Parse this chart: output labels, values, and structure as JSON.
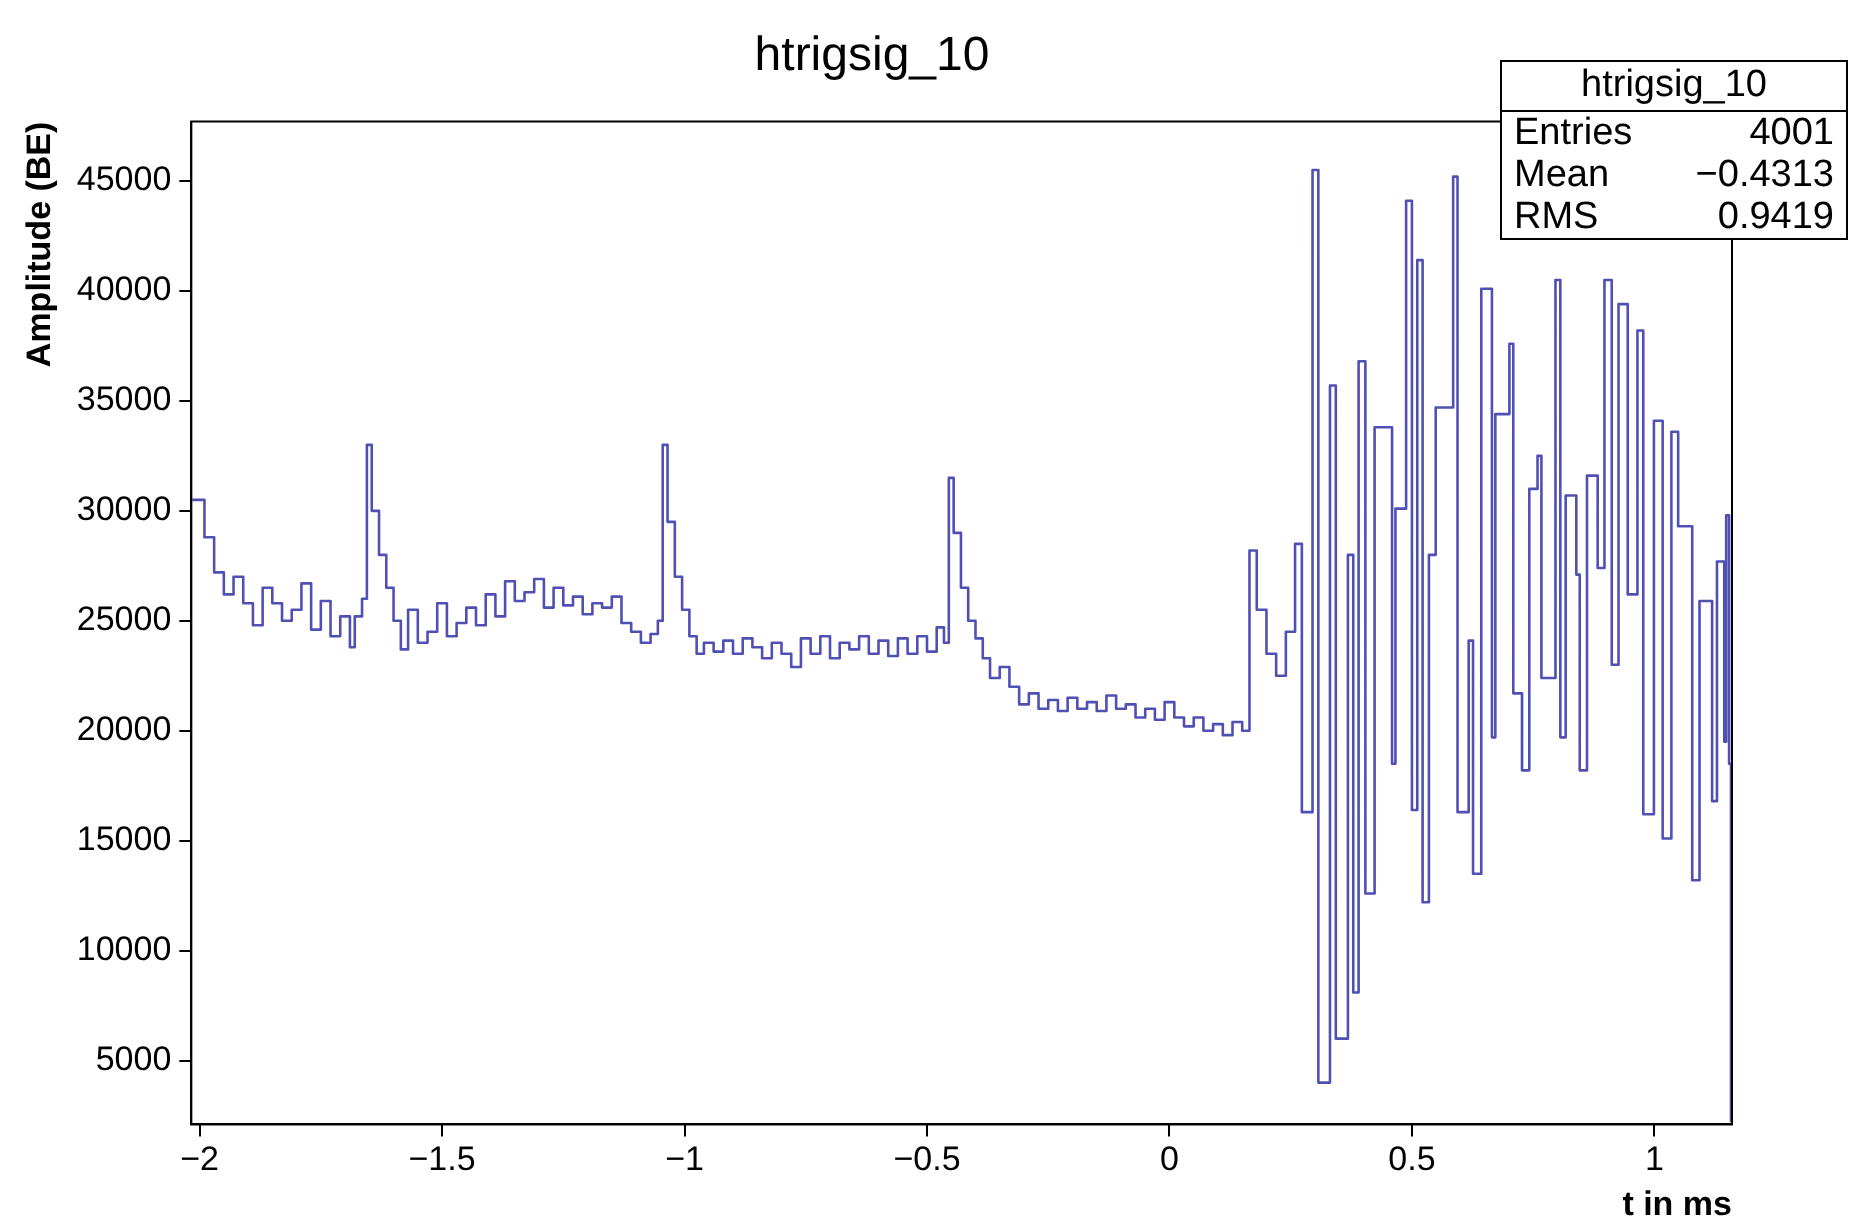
{
  "chart_data": {
    "type": "step",
    "title": "htrigsig_10",
    "xlabel": "t in ms",
    "ylabel": "Amplitude (BE)",
    "xlim": [
      -2.017,
      1.16
    ],
    "xticks": [
      {
        "value": -2,
        "label": "−2"
      },
      {
        "value": -1.5,
        "label": "−1.5"
      },
      {
        "value": -1,
        "label": "−1"
      },
      {
        "value": -0.5,
        "label": "−0.5"
      },
      0,
      0.5,
      1
    ],
    "ylim": [
      2100,
      47700
    ],
    "yticks": [
      5000,
      10000,
      15000,
      20000,
      25000,
      30000,
      35000,
      40000,
      45000
    ],
    "grid": false,
    "legend": false,
    "marker": "none",
    "line_style": "solid",
    "annotations": [
      "htrigsig_10",
      "Entries 4001",
      "Mean −0.4313",
      "RMS 0.9419"
    ],
    "series": [
      {
        "color": "#5050b4",
        "x": [
          -2.015,
          -1.99,
          -1.97,
          -1.95,
          -1.93,
          -1.91,
          -1.89,
          -1.87,
          -1.85,
          -1.83,
          -1.81,
          -1.79,
          -1.77,
          -1.75,
          -1.73,
          -1.71,
          -1.69,
          -1.68,
          -1.665,
          -1.655,
          -1.645,
          -1.63,
          -1.615,
          -1.6,
          -1.585,
          -1.57,
          -1.55,
          -1.53,
          -1.51,
          -1.49,
          -1.47,
          -1.45,
          -1.43,
          -1.41,
          -1.39,
          -1.37,
          -1.35,
          -1.33,
          -1.31,
          -1.29,
          -1.27,
          -1.25,
          -1.23,
          -1.21,
          -1.19,
          -1.17,
          -1.15,
          -1.13,
          -1.11,
          -1.09,
          -1.07,
          -1.055,
          -1.045,
          -1.035,
          -1.02,
          -1.005,
          -0.99,
          -0.975,
          -0.96,
          -0.94,
          -0.92,
          -0.9,
          -0.88,
          -0.86,
          -0.84,
          -0.82,
          -0.8,
          -0.78,
          -0.76,
          -0.74,
          -0.72,
          -0.7,
          -0.68,
          -0.66,
          -0.64,
          -0.62,
          -0.6,
          -0.58,
          -0.56,
          -0.54,
          -0.52,
          -0.5,
          -0.48,
          -0.465,
          -0.455,
          -0.445,
          -0.43,
          -0.415,
          -0.4,
          -0.385,
          -0.37,
          -0.35,
          -0.33,
          -0.31,
          -0.29,
          -0.27,
          -0.25,
          -0.23,
          -0.21,
          -0.19,
          -0.17,
          -0.15,
          -0.13,
          -0.11,
          -0.09,
          -0.07,
          -0.05,
          -0.03,
          -0.01,
          0.01,
          0.03,
          0.05,
          0.07,
          0.09,
          0.11,
          0.13,
          0.15,
          0.165,
          0.18,
          0.2,
          0.22,
          0.24,
          0.259,
          0.273,
          0.295,
          0.307,
          0.331,
          0.343,
          0.368,
          0.379,
          0.39,
          0.404,
          0.423,
          0.459,
          0.466,
          0.488,
          0.5,
          0.511,
          0.522,
          0.535,
          0.549,
          0.585,
          0.594,
          0.617,
          0.626,
          0.643,
          0.665,
          0.672,
          0.701,
          0.709,
          0.727,
          0.742,
          0.759,
          0.767,
          0.796,
          0.806,
          0.817,
          0.839,
          0.846,
          0.861,
          0.883,
          0.897,
          0.912,
          0.926,
          0.945,
          0.965,
          0.977,
          0.999,
          1.017,
          1.035,
          1.049,
          1.078,
          1.093,
          1.119,
          1.129,
          1.144,
          1.148,
          1.154,
          1.158
        ],
        "values": [
          30500,
          28800,
          27200,
          26200,
          27000,
          25800,
          24800,
          26500,
          25800,
          25000,
          25500,
          26700,
          24600,
          25900,
          24300,
          25200,
          23800,
          25200,
          26000,
          33000,
          30000,
          28000,
          26500,
          25000,
          23700,
          25500,
          24000,
          24500,
          25800,
          24300,
          24900,
          25600,
          24800,
          26200,
          25200,
          26800,
          25900,
          26300,
          26900,
          25600,
          26500,
          25700,
          26100,
          25300,
          25800,
          25600,
          26100,
          24900,
          24500,
          24000,
          24400,
          25000,
          33000,
          29500,
          27000,
          25500,
          24300,
          23500,
          24000,
          23600,
          24100,
          23500,
          24200,
          23800,
          23300,
          24000,
          23500,
          22900,
          24200,
          23500,
          24300,
          23300,
          24000,
          23700,
          24300,
          23500,
          24100,
          23400,
          24200,
          23500,
          24300,
          23600,
          24700,
          24000,
          31500,
          29000,
          26500,
          25000,
          24200,
          23300,
          22400,
          22900,
          22000,
          21200,
          21700,
          21000,
          21400,
          20900,
          21500,
          21000,
          21300,
          20900,
          21600,
          21000,
          21200,
          20600,
          21000,
          20500,
          21300,
          20600,
          20200,
          20600,
          20000,
          20300,
          19800,
          20400,
          20000,
          28200,
          25500,
          23500,
          22500,
          24500,
          28500,
          16300,
          45500,
          4000,
          35700,
          6000,
          28000,
          8100,
          36800,
          12600,
          33800,
          18500,
          30100,
          44100,
          16400,
          41400,
          12200,
          28000,
          34700,
          45200,
          16300,
          24100,
          13500,
          40100,
          19700,
          34400,
          37600,
          21700,
          18200,
          31000,
          32500,
          22400,
          40500,
          19700,
          30700,
          27100,
          18200,
          31600,
          27400,
          40500,
          23000,
          39400,
          26200,
          38200,
          16200,
          34100,
          15100,
          33600,
          29300,
          13200,
          25900,
          16800,
          27700,
          19500,
          29800,
          18500,
          2200
        ]
      }
    ]
  }
}
